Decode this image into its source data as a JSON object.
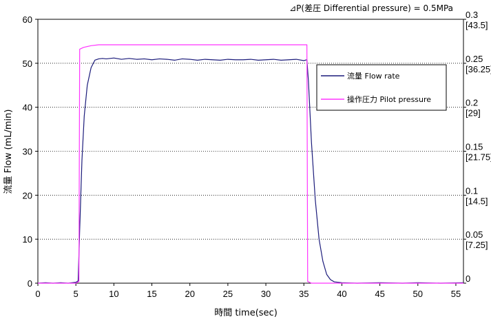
{
  "chart_data": {
    "type": "line",
    "header_annotation": "⊿P(差圧 Differential pressure) = 0.5MPa",
    "xlabel": "時間 time(sec)",
    "ylabel": "流量 Flow (mL/min)",
    "xlim": [
      0,
      56
    ],
    "ylim": [
      0,
      60
    ],
    "y2lim": [
      0,
      0.3
    ],
    "x_ticks": [
      0,
      5,
      10,
      15,
      20,
      25,
      30,
      35,
      40,
      45,
      50,
      55
    ],
    "y_ticks": [
      0,
      10,
      20,
      30,
      40,
      50,
      60
    ],
    "y2_ticks": [
      {
        "value": 0,
        "label": "0",
        "sublabel": ""
      },
      {
        "value": 0.05,
        "label": "0.05",
        "sublabel": "[7.25]"
      },
      {
        "value": 0.1,
        "label": "0.1",
        "sublabel": "[14.5]"
      },
      {
        "value": 0.15,
        "label": "0.15",
        "sublabel": "[21.75]"
      },
      {
        "value": 0.2,
        "label": "0.2",
        "sublabel": "[29]"
      },
      {
        "value": 0.25,
        "label": "0.25",
        "sublabel": "[36.25]"
      },
      {
        "value": 0.3,
        "label": "0.3",
        "sublabel": "[43.5]"
      }
    ],
    "grid": "horizontal dotted",
    "legend_position": "right, upper",
    "series": [
      {
        "name": "流量  Flow rate",
        "axis": "left",
        "color": "#1a1a7a",
        "points": [
          [
            0,
            0
          ],
          [
            1,
            0.1
          ],
          [
            2,
            0
          ],
          [
            3,
            0.1
          ],
          [
            4,
            0
          ],
          [
            5,
            0.2
          ],
          [
            5.3,
            0.5
          ],
          [
            5.5,
            12
          ],
          [
            5.8,
            28
          ],
          [
            6.1,
            38
          ],
          [
            6.5,
            45
          ],
          [
            7,
            49
          ],
          [
            7.5,
            50.7
          ],
          [
            8,
            51
          ],
          [
            8.5,
            51.1
          ],
          [
            9,
            51
          ],
          [
            10,
            51.2
          ],
          [
            11,
            50.9
          ],
          [
            12,
            51.1
          ],
          [
            13,
            50.9
          ],
          [
            14,
            51
          ],
          [
            15,
            50.8
          ],
          [
            16,
            51
          ],
          [
            17,
            50.9
          ],
          [
            18,
            50.7
          ],
          [
            19,
            51
          ],
          [
            20,
            50.9
          ],
          [
            21,
            50.7
          ],
          [
            22,
            50.9
          ],
          [
            23,
            50.8
          ],
          [
            24,
            50.7
          ],
          [
            25,
            50.9
          ],
          [
            26,
            50.8
          ],
          [
            27,
            50.8
          ],
          [
            28,
            50.9
          ],
          [
            29,
            50.7
          ],
          [
            30,
            50.8
          ],
          [
            31,
            50.9
          ],
          [
            32,
            50.7
          ],
          [
            33,
            50.8
          ],
          [
            34,
            50.9
          ],
          [
            35,
            50.6
          ],
          [
            35.4,
            50.8
          ],
          [
            35.6,
            46
          ],
          [
            36,
            32
          ],
          [
            36.5,
            19
          ],
          [
            37,
            10
          ],
          [
            37.5,
            5
          ],
          [
            38,
            2
          ],
          [
            38.5,
            0.8
          ],
          [
            39,
            0.3
          ],
          [
            40,
            0.1
          ],
          [
            42,
            0
          ],
          [
            45,
            0.1
          ],
          [
            48,
            0
          ],
          [
            50,
            0.1
          ],
          [
            53,
            0
          ],
          [
            56,
            0.1
          ]
        ]
      },
      {
        "name": "操作圧力  Pilot pressure",
        "axis": "right",
        "color": "#ff33ff",
        "points": [
          [
            0,
            0
          ],
          [
            5,
            0
          ],
          [
            5.4,
            0.002
          ],
          [
            5.5,
            0.266
          ],
          [
            6,
            0.268
          ],
          [
            7,
            0.27
          ],
          [
            8,
            0.271
          ],
          [
            10,
            0.271
          ],
          [
            20,
            0.271
          ],
          [
            30,
            0.271
          ],
          [
            35.4,
            0.271
          ],
          [
            35.5,
            0.002
          ],
          [
            36,
            0
          ],
          [
            56,
            0
          ]
        ]
      }
    ]
  }
}
